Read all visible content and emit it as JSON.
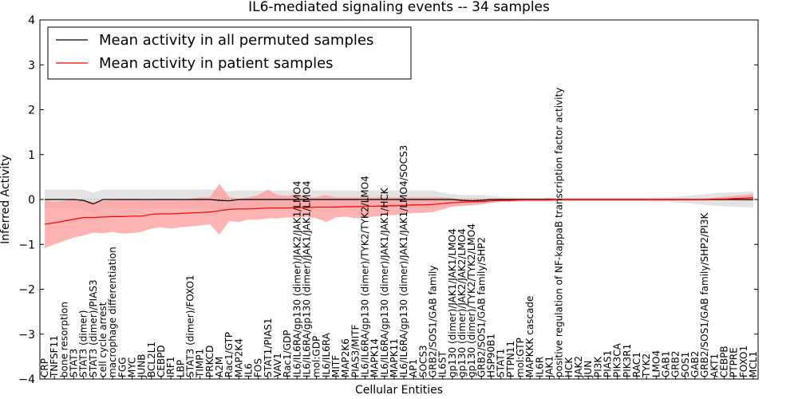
{
  "chart_data": {
    "type": "line",
    "title": "IL6-mediated signaling events -- 34 samples",
    "xlabel": "Cellular Entities",
    "ylabel": "Inferred Activity",
    "ylim": [
      -4,
      4
    ],
    "yticks": [
      -4,
      -3,
      -2,
      -1,
      0,
      1,
      2,
      3,
      4
    ],
    "ytick_labels": [
      "−4",
      "−3",
      "−2",
      "−1",
      "0",
      "1",
      "2",
      "3",
      "4"
    ],
    "legend_position": "top-left",
    "categories": [
      "CRP",
      "TNFSF11",
      "bone resorption",
      "STAT3",
      "STAT3 (dimer)",
      "STAT3 (dimer)/PIAS3",
      "cell cycle arrest",
      "macrophage differentiation",
      "FGG",
      "MYC",
      "JUNB",
      "BCL2L1",
      "CEBPD",
      "IRF1",
      "LBP",
      "STAT3 (dimer)/FOXO1",
      "TIMP1",
      "PRKCD",
      "A2M",
      "Rac1/GTP",
      "MAP2K4",
      "IL6",
      "FOS",
      "STAT1/PIAS1",
      "VAV1",
      "Rac1/GDP",
      "IL6/IL6RA/gp130 (dimer)/JAK2/JAK1/LMO4",
      "IL6/IL6RA/gp130 (dimer)/JAK1/JAK1/LMO4",
      "mol:GDP",
      "IL6/IL6RA",
      "MITF",
      "MAP2K6",
      "PIAS3/MITF",
      "IL6/IL6RA/gp130 (dimer)/TYK2/TYK2/LMO4",
      "MAPK14",
      "IL6/IL6RA/gp130 (dimer)/JAK1/JAK1/HCK",
      "MAPK11",
      "IL6/IL6RA/gp130 (dimer)/JAK1/JAK1/LMO4/SOCS3",
      "AP1",
      "SOCS3",
      "GRB2/SOS1/GAB family",
      "IL6ST",
      "gp130 (dimer)/JAK1/JAK1/LMO4",
      "gp130 (dimer)/JAK2/JAK2/LMO4",
      "gp130 (dimer)/TYK2/TYK2/LMO4",
      "GRB2/SOS1/GAB family/SHP2",
      "HSP90B1",
      "STAT1",
      "PTPN11",
      "mol:GTP",
      "MAPKKK cascade",
      "IL6R",
      "JAK1",
      "positive regulation of NF-kappaB transcription factor activity",
      "HCK",
      "JAK2",
      "JUN",
      "PI3K",
      "PIAS1",
      "PIK3CA",
      "PIK3R1",
      "RAC1",
      "TYK2",
      "LMO4",
      "GAB1",
      "GRB2",
      "SOS1",
      "GAB2",
      "GRB2/SOS1/GAB family/SHP2/PI3K",
      "AKT1",
      "CEBPB",
      "PTPRE",
      "FOXO1",
      "MCL1"
    ],
    "series": [
      {
        "name": "Mean activity in all permuted samples",
        "color": "#000000",
        "band_color": "#cccccc",
        "values": [
          0,
          0,
          0,
          0,
          -0.02,
          -0.1,
          0,
          0,
          0,
          0,
          0,
          0,
          0,
          0,
          0,
          0,
          0,
          0,
          -0.02,
          -0.03,
          0,
          0,
          0,
          0,
          0,
          0,
          0,
          0,
          0,
          0,
          0,
          0,
          0,
          0,
          0,
          0,
          0,
          0,
          0,
          0,
          0,
          0,
          0,
          -0.02,
          -0.03,
          -0.02,
          0,
          0,
          0,
          0,
          0,
          0,
          0,
          0,
          0,
          0,
          0,
          0,
          0,
          0,
          0,
          0,
          0,
          0,
          0,
          0,
          0,
          0,
          0,
          0,
          0,
          0,
          0,
          0
        ],
        "upper": [
          0.22,
          0.22,
          0.22,
          0.22,
          0.22,
          0.15,
          0.22,
          0.22,
          0.22,
          0.22,
          0.22,
          0.22,
          0.22,
          0.22,
          0.22,
          0.22,
          0.22,
          0.22,
          0.2,
          0.18,
          0.2,
          0.2,
          0.2,
          0.2,
          0.2,
          0.2,
          0.2,
          0.2,
          0.2,
          0.2,
          0.2,
          0.2,
          0.2,
          0.2,
          0.2,
          0.2,
          0.2,
          0.2,
          0.2,
          0.2,
          0.2,
          0.15,
          0.12,
          0.1,
          0.1,
          0.1,
          0.08,
          0.06,
          0.05,
          0.05,
          0.04,
          0.04,
          0.04,
          0.04,
          0.04,
          0.04,
          0.04,
          0.04,
          0.04,
          0.04,
          0.04,
          0.04,
          0.04,
          0.05,
          0.05,
          0.06,
          0.08,
          0.1,
          0.12,
          0.14,
          0.15,
          0.16,
          0.17,
          0.18
        ],
        "lower": [
          -0.2,
          -0.2,
          -0.2,
          -0.2,
          -0.22,
          -0.3,
          -0.2,
          -0.2,
          -0.2,
          -0.2,
          -0.2,
          -0.2,
          -0.2,
          -0.2,
          -0.2,
          -0.2,
          -0.2,
          -0.2,
          -0.22,
          -0.24,
          -0.2,
          -0.2,
          -0.2,
          -0.2,
          -0.2,
          -0.2,
          -0.2,
          -0.2,
          -0.2,
          -0.2,
          -0.2,
          -0.2,
          -0.2,
          -0.2,
          -0.2,
          -0.2,
          -0.2,
          -0.2,
          -0.2,
          -0.2,
          -0.2,
          -0.15,
          -0.14,
          -0.14,
          -0.14,
          -0.12,
          -0.08,
          -0.06,
          -0.05,
          -0.05,
          -0.04,
          -0.04,
          -0.04,
          -0.04,
          -0.04,
          -0.04,
          -0.04,
          -0.04,
          -0.04,
          -0.04,
          -0.04,
          -0.04,
          -0.04,
          -0.05,
          -0.05,
          -0.06,
          -0.08,
          -0.1,
          -0.12,
          -0.14,
          -0.15,
          -0.16,
          -0.17,
          -0.18
        ]
      },
      {
        "name": "Mean activity in patient samples",
        "color": "#ff0000",
        "band_color": "#ff9999",
        "values": [
          -0.55,
          -0.52,
          -0.48,
          -0.44,
          -0.4,
          -0.4,
          -0.39,
          -0.38,
          -0.38,
          -0.37,
          -0.37,
          -0.33,
          -0.32,
          -0.32,
          -0.31,
          -0.3,
          -0.29,
          -0.28,
          -0.25,
          -0.22,
          -0.21,
          -0.21,
          -0.2,
          -0.19,
          -0.19,
          -0.19,
          -0.18,
          -0.18,
          -0.17,
          -0.17,
          -0.17,
          -0.16,
          -0.16,
          -0.15,
          -0.15,
          -0.14,
          -0.14,
          -0.13,
          -0.12,
          -0.12,
          -0.11,
          -0.09,
          -0.07,
          -0.06,
          -0.05,
          -0.05,
          -0.03,
          -0.02,
          -0.02,
          -0.01,
          -0.01,
          -0.01,
          -0.01,
          0,
          0,
          0,
          0,
          0,
          0,
          0,
          0,
          0,
          0,
          0,
          0,
          0,
          0,
          0,
          0,
          0.01,
          0.01,
          0.02,
          0.03,
          0.04
        ],
        "upper": [
          -0.02,
          -0.05,
          -0.03,
          0.02,
          -0.02,
          -0.05,
          -0.03,
          -0.02,
          0.0,
          0.0,
          -0.02,
          -0.02,
          0.0,
          0.0,
          -0.02,
          0.02,
          0.05,
          0.05,
          0.35,
          0.05,
          0.02,
          0.05,
          0.1,
          0.22,
          0.1,
          0.08,
          0.12,
          0.05,
          0.05,
          0.1,
          0.05,
          0.05,
          0.05,
          0.05,
          0.05,
          0.05,
          0.05,
          0.05,
          0.05,
          0.05,
          0.05,
          0.05,
          0.03,
          0.02,
          0.02,
          0.02,
          0.02,
          0.02,
          0.02,
          0.02,
          0.02,
          0.02,
          0.04,
          0.02,
          0.02,
          0.02,
          0.02,
          0.02,
          0.02,
          0.02,
          0.02,
          0.02,
          0.02,
          0.02,
          0.02,
          0.02,
          0.02,
          0.02,
          0.02,
          0.04,
          0.06,
          0.08,
          0.1,
          0.12
        ],
        "lower": [
          -1.08,
          -1.0,
          -0.92,
          -0.85,
          -0.8,
          -0.74,
          -0.75,
          -0.72,
          -0.76,
          -0.75,
          -0.72,
          -0.65,
          -0.62,
          -0.65,
          -0.62,
          -0.6,
          -0.58,
          -0.55,
          -0.78,
          -0.48,
          -0.5,
          -0.45,
          -0.45,
          -0.42,
          -0.42,
          -0.4,
          -0.4,
          -0.38,
          -0.42,
          -0.5,
          -0.4,
          -0.38,
          -0.42,
          -0.4,
          -0.38,
          -0.35,
          -0.35,
          -0.32,
          -0.3,
          -0.3,
          -0.28,
          -0.22,
          -0.16,
          -0.14,
          -0.12,
          -0.1,
          -0.07,
          -0.05,
          -0.05,
          -0.04,
          -0.04,
          -0.04,
          -0.04,
          -0.03,
          -0.03,
          -0.03,
          -0.03,
          -0.03,
          -0.03,
          -0.03,
          -0.03,
          -0.03,
          -0.03,
          -0.03,
          -0.03,
          -0.03,
          -0.03,
          -0.03,
          -0.03,
          -0.02,
          -0.02,
          -0.02,
          -0.03,
          -0.03
        ]
      }
    ]
  }
}
